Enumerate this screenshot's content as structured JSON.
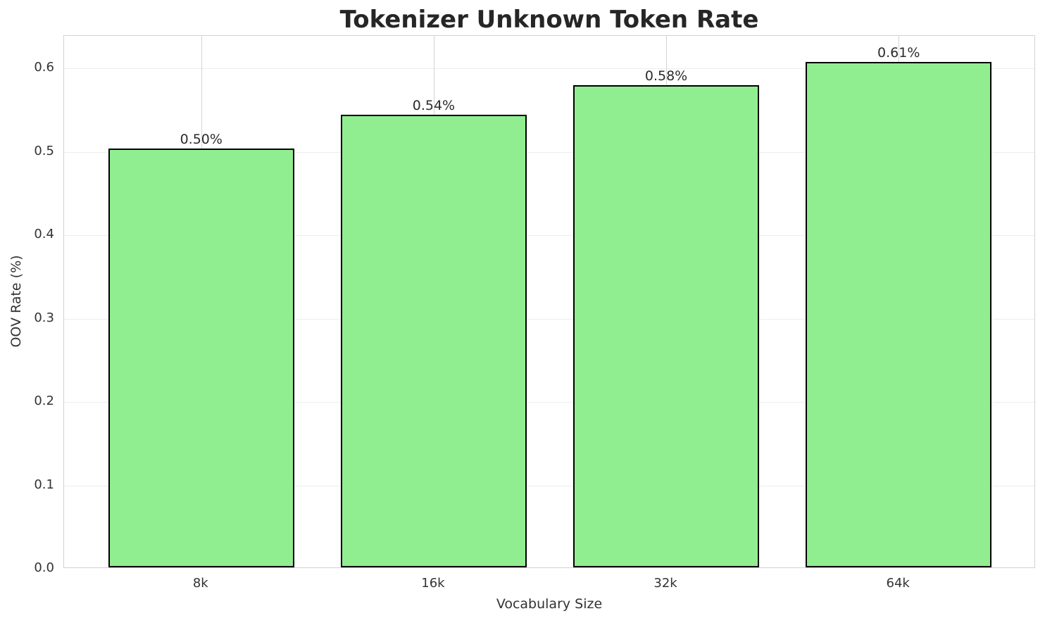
{
  "chart_data": {
    "type": "bar",
    "title": "Tokenizer Unknown Token Rate",
    "xlabel": "Vocabulary Size",
    "ylabel": "OOV Rate (%)",
    "categories": [
      "8k",
      "16k",
      "32k",
      "64k"
    ],
    "values": [
      0.502,
      0.543,
      0.578,
      0.606
    ],
    "bar_labels": [
      "0.50%",
      "0.54%",
      "0.58%",
      "0.61%"
    ],
    "yticks": [
      0.0,
      0.1,
      0.2,
      0.3,
      0.4,
      0.5,
      0.6
    ],
    "ytick_labels": [
      "0.0",
      "0.1",
      "0.2",
      "0.3",
      "0.4",
      "0.5",
      "0.6"
    ],
    "ylim": [
      0,
      0.639
    ],
    "grid": "both",
    "legend_position": "none",
    "colors": {
      "bar_fill": "#90EE90",
      "bar_edge": "#000000",
      "h_grid": "#ededed",
      "v_grid": "#d4d4d4",
      "spine": "#d2d2d2",
      "title_text": "#262626",
      "tick_text": "#333333",
      "background": "#ffffff"
    }
  }
}
